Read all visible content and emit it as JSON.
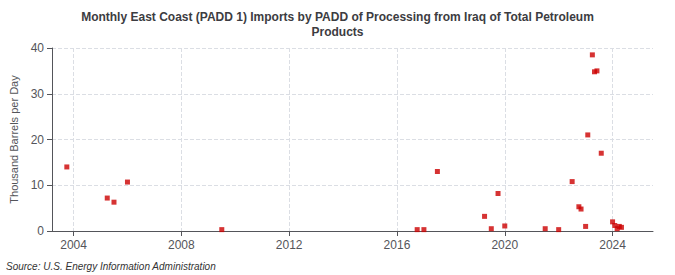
{
  "chart_data": {
    "type": "scatter",
    "title": "Monthly East Coast (PADD 1) Imports by PADD of Processing from Iraq of Total Petroleum\nProducts",
    "ylabel": "Thousand Barrels per Day",
    "annotations": [
      "Source: U.S. Energy Information Administration"
    ],
    "color": "#cc0000",
    "marker": "square",
    "grid": true,
    "xlim": [
      2003.2,
      2025.5
    ],
    "xticks": [
      2004,
      2008,
      2012,
      2016,
      2020,
      2024
    ],
    "ylim": [
      0,
      40
    ],
    "yticks": [
      0,
      10,
      20,
      30,
      40
    ],
    "x": [
      2003.75,
      2005.25,
      2005.5,
      2006.0,
      2009.5,
      2016.75,
      2017.0,
      2017.5,
      2019.25,
      2019.5,
      2019.75,
      2020.0,
      2021.5,
      2022.0,
      2022.5,
      2022.75,
      2022.83,
      2023.0,
      2023.08,
      2023.25,
      2023.33,
      2023.42,
      2023.58,
      2024.0,
      2024.08,
      2024.17,
      2024.25,
      2024.33
    ],
    "values": [
      14.0,
      7.2,
      6.3,
      10.7,
      0.3,
      0.3,
      0.3,
      13.0,
      3.2,
      0.5,
      8.2,
      1.1,
      0.5,
      0.3,
      10.8,
      5.3,
      4.8,
      1.0,
      21.0,
      38.5,
      34.8,
      35.0,
      17.0,
      2.0,
      1.2,
      0.5,
      1.0,
      0.8
    ]
  }
}
